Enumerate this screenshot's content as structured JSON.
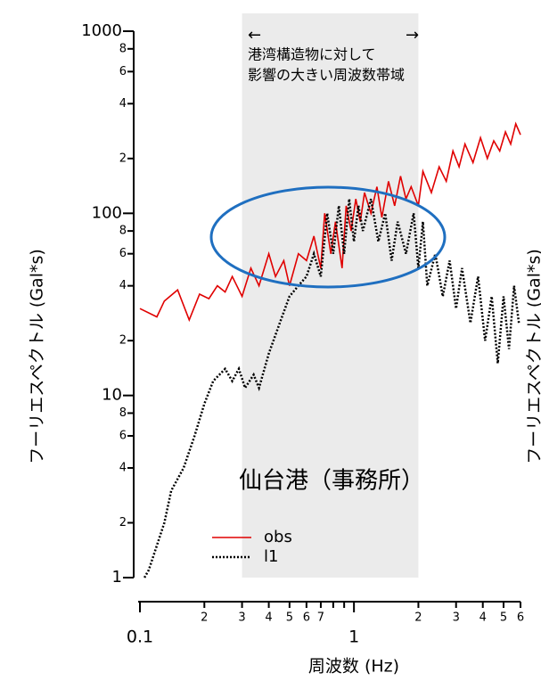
{
  "chart_data": {
    "type": "line",
    "xscale": "log",
    "yscale": "log",
    "title": "仙台港（事務所）",
    "xlabel": "周波数 (Hz)",
    "ylabel": "フーリエスペクトル (Gal*s)",
    "ylabel_right": "フーリエスペクトル (Gal*s)",
    "annotation": {
      "arrow_left": "←",
      "arrow_right": "→",
      "lines": [
        "港湾構造物に対して",
        "影響の大きい周波数帯域"
      ]
    },
    "band": [
      0.3,
      2
    ],
    "xlim": [
      0.1,
      6
    ],
    "ylim": [
      1,
      1000
    ],
    "xticks": [
      0.1,
      {
        "value": 0.2,
        "label": "2"
      },
      {
        "value": 0.3,
        "label": "3"
      },
      {
        "value": 0.4,
        "label": "4"
      },
      {
        "value": 0.5,
        "label": "5"
      },
      {
        "value": 0.6,
        "label": "6"
      },
      {
        "value": 0.7,
        "label": "7"
      },
      1,
      2,
      3,
      4,
      5,
      6
    ],
    "xminorticks": [
      0.8,
      0.9
    ],
    "yticks": [
      1,
      2,
      4,
      6,
      8,
      10,
      {
        "value": 20,
        "label": "2"
      },
      {
        "value": 40,
        "label": "4"
      },
      {
        "value": 60,
        "label": "6"
      },
      {
        "value": 80,
        "label": "8"
      },
      100,
      {
        "value": 200,
        "label": "2"
      },
      {
        "value": 400,
        "label": "4"
      },
      {
        "value": 600,
        "label": "6"
      },
      {
        "value": 800,
        "label": "8"
      },
      1000
    ],
    "legend": "lower-left",
    "series": [
      {
        "name": "obs",
        "color": "#e00000",
        "dash": "solid",
        "x": [
          0.1,
          0.12,
          0.13,
          0.15,
          0.17,
          0.19,
          0.21,
          0.23,
          0.25,
          0.27,
          0.3,
          0.33,
          0.36,
          0.4,
          0.43,
          0.47,
          0.5,
          0.55,
          0.6,
          0.65,
          0.7,
          0.73,
          0.78,
          0.82,
          0.88,
          0.92,
          0.97,
          1.02,
          1.07,
          1.12,
          1.2,
          1.28,
          1.35,
          1.45,
          1.55,
          1.65,
          1.75,
          1.85,
          2.0,
          2.1,
          2.3,
          2.5,
          2.7,
          2.9,
          3.1,
          3.3,
          3.6,
          3.9,
          4.2,
          4.5,
          4.8,
          5.1,
          5.4,
          5.7,
          6.0
        ],
        "values": [
          30,
          27,
          33,
          38,
          26,
          36,
          34,
          40,
          37,
          45,
          35,
          50,
          40,
          60,
          45,
          55,
          40,
          60,
          55,
          75,
          50,
          100,
          60,
          90,
          50,
          110,
          80,
          120,
          90,
          130,
          100,
          140,
          95,
          150,
          110,
          160,
          120,
          140,
          110,
          170,
          130,
          180,
          150,
          220,
          180,
          240,
          190,
          260,
          200,
          250,
          220,
          280,
          240,
          310,
          270
        ]
      },
      {
        "name": "l1",
        "color": "#000000",
        "dash": "dotted",
        "x": [
          0.105,
          0.11,
          0.12,
          0.13,
          0.14,
          0.16,
          0.18,
          0.2,
          0.22,
          0.25,
          0.27,
          0.29,
          0.31,
          0.34,
          0.36,
          0.4,
          0.45,
          0.5,
          0.55,
          0.6,
          0.65,
          0.7,
          0.75,
          0.8,
          0.85,
          0.9,
          0.95,
          1.0,
          1.05,
          1.1,
          1.2,
          1.3,
          1.4,
          1.5,
          1.6,
          1.75,
          1.9,
          2.0,
          2.1,
          2.2,
          2.4,
          2.6,
          2.8,
          3.0,
          3.2,
          3.5,
          3.8,
          4.1,
          4.4,
          4.7,
          5.0,
          5.3,
          5.6,
          5.9
        ],
        "values": [
          1,
          1.1,
          1.5,
          2,
          3,
          4,
          6,
          9,
          12,
          14,
          12,
          14,
          11,
          13,
          11,
          17,
          25,
          35,
          40,
          45,
          60,
          45,
          100,
          60,
          110,
          60,
          120,
          70,
          110,
          80,
          120,
          70,
          100,
          55,
          90,
          60,
          100,
          50,
          90,
          40,
          60,
          35,
          55,
          30,
          50,
          25,
          45,
          20,
          35,
          15,
          35,
          18,
          40,
          25
        ]
      }
    ]
  }
}
